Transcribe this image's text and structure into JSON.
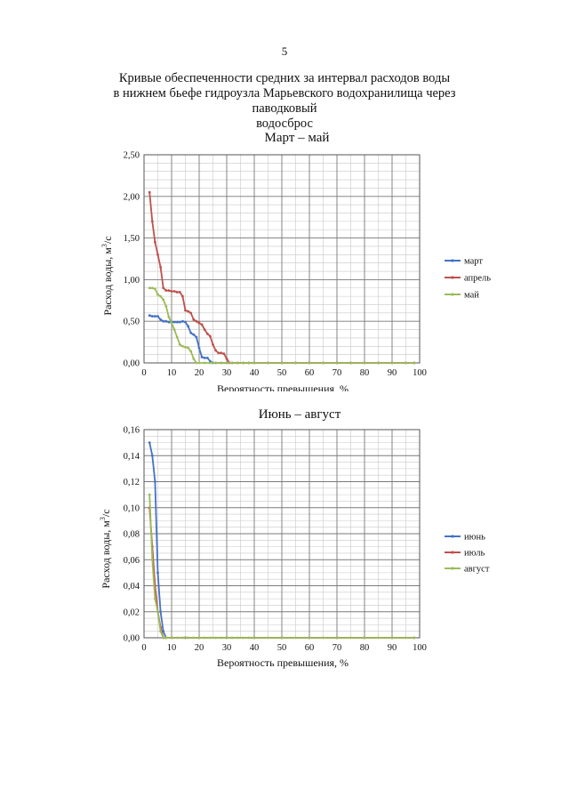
{
  "page": {
    "number": "5",
    "title_lines": [
      "Кривые обеспеченности средних за интервал расходов воды",
      "в нижнем бьефе гидроузла Марьевского водохранилища через паводковый",
      "водосброс"
    ]
  },
  "chart_data": [
    {
      "type": "line",
      "title": "Март – май",
      "xlabel": "Вероятность превышения, %",
      "ylabel_main": "Расход воды, м",
      "ylabel_sup": "3",
      "ylabel_tail": "/с",
      "xlim": [
        0,
        100
      ],
      "ylim": [
        0,
        2.5
      ],
      "xticks": [
        0,
        10,
        20,
        30,
        40,
        50,
        60,
        70,
        80,
        90,
        100
      ],
      "xtick_labels": [
        "0",
        "10",
        "20",
        "30",
        "40",
        "50",
        "60",
        "70",
        "80",
        "90",
        "100"
      ],
      "yticks": [
        0,
        0.5,
        1.0,
        1.5,
        2.0,
        2.5
      ],
      "ytick_labels": [
        "0,00",
        "0,50",
        "1,00",
        "1,50",
        "2,00",
        "2,50"
      ],
      "grid": true,
      "legend": "right",
      "series": [
        {
          "name": "март",
          "color": "#4472c4",
          "points": [
            [
              2,
              0.57
            ],
            [
              3,
              0.56
            ],
            [
              4,
              0.56
            ],
            [
              5,
              0.56
            ],
            [
              6,
              0.52
            ],
            [
              7,
              0.5
            ],
            [
              8,
              0.5
            ],
            [
              9,
              0.49
            ],
            [
              10,
              0.49
            ],
            [
              11,
              0.49
            ],
            [
              12,
              0.49
            ],
            [
              13,
              0.49
            ],
            [
              14,
              0.5
            ],
            [
              15,
              0.49
            ],
            [
              16,
              0.44
            ],
            [
              17,
              0.36
            ],
            [
              18,
              0.34
            ],
            [
              19,
              0.31
            ],
            [
              20,
              0.18
            ],
            [
              21,
              0.07
            ],
            [
              22,
              0.06
            ],
            [
              23,
              0.06
            ],
            [
              24,
              0.02
            ],
            [
              25,
              0
            ],
            [
              26,
              0
            ],
            [
              28,
              0
            ],
            [
              30,
              0
            ],
            [
              32,
              0
            ],
            [
              34,
              0
            ],
            [
              36,
              0
            ],
            [
              38,
              0
            ],
            [
              40,
              0
            ],
            [
              45,
              0
            ],
            [
              50,
              0
            ],
            [
              55,
              0
            ],
            [
              60,
              0
            ],
            [
              65,
              0
            ],
            [
              70,
              0
            ],
            [
              75,
              0
            ],
            [
              80,
              0
            ],
            [
              85,
              0
            ],
            [
              90,
              0
            ],
            [
              95,
              0
            ],
            [
              98,
              0
            ]
          ]
        },
        {
          "name": "апрель",
          "color": "#c0504d",
          "points": [
            [
              2,
              2.05
            ],
            [
              3,
              1.7
            ],
            [
              4,
              1.45
            ],
            [
              5,
              1.3
            ],
            [
              6,
              1.15
            ],
            [
              7,
              0.9
            ],
            [
              8,
              0.87
            ],
            [
              9,
              0.87
            ],
            [
              10,
              0.86
            ],
            [
              11,
              0.86
            ],
            [
              12,
              0.85
            ],
            [
              13,
              0.85
            ],
            [
              14,
              0.8
            ],
            [
              15,
              0.63
            ],
            [
              16,
              0.62
            ],
            [
              17,
              0.6
            ],
            [
              18,
              0.52
            ],
            [
              19,
              0.5
            ],
            [
              20,
              0.48
            ],
            [
              21,
              0.46
            ],
            [
              22,
              0.4
            ],
            [
              23,
              0.35
            ],
            [
              24,
              0.32
            ],
            [
              25,
              0.22
            ],
            [
              26,
              0.15
            ],
            [
              27,
              0.12
            ],
            [
              28,
              0.12
            ],
            [
              29,
              0.11
            ],
            [
              30,
              0.05
            ],
            [
              31,
              0
            ],
            [
              32,
              0
            ],
            [
              34,
              0
            ],
            [
              36,
              0
            ],
            [
              38,
              0
            ],
            [
              40,
              0
            ],
            [
              45,
              0
            ],
            [
              50,
              0
            ],
            [
              55,
              0
            ],
            [
              60,
              0
            ],
            [
              65,
              0
            ],
            [
              70,
              0
            ],
            [
              75,
              0
            ],
            [
              80,
              0
            ],
            [
              85,
              0
            ],
            [
              90,
              0
            ],
            [
              95,
              0
            ],
            [
              98,
              0
            ]
          ]
        },
        {
          "name": "май",
          "color": "#9bbb59",
          "points": [
            [
              2,
              0.9
            ],
            [
              3,
              0.9
            ],
            [
              4,
              0.89
            ],
            [
              5,
              0.82
            ],
            [
              6,
              0.8
            ],
            [
              7,
              0.76
            ],
            [
              8,
              0.68
            ],
            [
              9,
              0.55
            ],
            [
              10,
              0.48
            ],
            [
              11,
              0.4
            ],
            [
              12,
              0.31
            ],
            [
              13,
              0.22
            ],
            [
              14,
              0.2
            ],
            [
              15,
              0.19
            ],
            [
              16,
              0.18
            ],
            [
              17,
              0.14
            ],
            [
              18,
              0.05
            ],
            [
              19,
              0
            ],
            [
              20,
              0
            ],
            [
              22,
              0
            ],
            [
              24,
              0
            ],
            [
              26,
              0
            ],
            [
              28,
              0
            ],
            [
              30,
              0
            ],
            [
              32,
              0
            ],
            [
              34,
              0
            ],
            [
              36,
              0
            ],
            [
              38,
              0
            ],
            [
              40,
              0
            ],
            [
              45,
              0
            ],
            [
              50,
              0
            ],
            [
              55,
              0
            ],
            [
              60,
              0
            ],
            [
              65,
              0
            ],
            [
              70,
              0
            ],
            [
              75,
              0
            ],
            [
              80,
              0
            ],
            [
              85,
              0
            ],
            [
              90,
              0
            ],
            [
              95,
              0
            ],
            [
              98,
              0
            ]
          ]
        }
      ]
    },
    {
      "type": "line",
      "title": "Июнь – август",
      "xlabel": "Вероятность превышения, %",
      "ylabel_main": "Расход воды, м",
      "ylabel_sup": "3",
      "ylabel_tail": "/с",
      "xlim": [
        0,
        100
      ],
      "ylim": [
        0,
        0.16
      ],
      "xticks": [
        0,
        10,
        20,
        30,
        40,
        50,
        60,
        70,
        80,
        90,
        100
      ],
      "xtick_labels": [
        "0",
        "10",
        "20",
        "30",
        "40",
        "50",
        "60",
        "70",
        "80",
        "90",
        "100"
      ],
      "yticks": [
        0,
        0.02,
        0.04,
        0.06,
        0.08,
        0.1,
        0.12,
        0.14,
        0.16
      ],
      "ytick_labels": [
        "0,00",
        "0,02",
        "0,04",
        "0,06",
        "0,08",
        "0,10",
        "0,12",
        "0,14",
        "0,16"
      ],
      "grid": true,
      "legend": "right",
      "series": [
        {
          "name": "июнь",
          "color": "#4472c4",
          "points": [
            [
              2,
              0.15
            ],
            [
              3,
              0.14
            ],
            [
              4,
              0.12
            ],
            [
              5,
              0.05
            ],
            [
              6,
              0.02
            ],
            [
              7,
              0.005
            ],
            [
              8,
              0
            ],
            [
              10,
              0
            ],
            [
              15,
              0
            ],
            [
              20,
              0
            ],
            [
              30,
              0
            ],
            [
              40,
              0
            ],
            [
              50,
              0
            ],
            [
              60,
              0
            ],
            [
              70,
              0
            ],
            [
              80,
              0
            ],
            [
              90,
              0
            ],
            [
              98,
              0
            ]
          ]
        },
        {
          "name": "июль",
          "color": "#c0504d",
          "points": [
            [
              2,
              0.1
            ],
            [
              3,
              0.07
            ],
            [
              4,
              0.04
            ],
            [
              5,
              0.02
            ],
            [
              6,
              0.008
            ],
            [
              7,
              0
            ],
            [
              8,
              0
            ],
            [
              10,
              0
            ],
            [
              15,
              0
            ],
            [
              20,
              0
            ],
            [
              30,
              0
            ],
            [
              40,
              0
            ],
            [
              50,
              0
            ],
            [
              60,
              0
            ],
            [
              70,
              0
            ],
            [
              80,
              0
            ],
            [
              90,
              0
            ],
            [
              98,
              0
            ]
          ]
        },
        {
          "name": "август",
          "color": "#9bbb59",
          "points": [
            [
              2,
              0.11
            ],
            [
              3,
              0.06
            ],
            [
              4,
              0.03
            ],
            [
              5,
              0.02
            ],
            [
              6,
              0.005
            ],
            [
              7,
              0
            ],
            [
              8,
              0
            ],
            [
              10,
              0
            ],
            [
              12,
              0
            ],
            [
              14,
              0
            ],
            [
              16,
              0
            ],
            [
              18,
              0
            ],
            [
              20,
              0
            ],
            [
              22,
              0
            ],
            [
              24,
              0
            ],
            [
              26,
              0
            ],
            [
              28,
              0
            ],
            [
              30,
              0
            ],
            [
              32,
              0
            ],
            [
              34,
              0
            ],
            [
              36,
              0
            ],
            [
              38,
              0
            ],
            [
              40,
              0
            ],
            [
              45,
              0
            ],
            [
              50,
              0
            ],
            [
              55,
              0
            ],
            [
              60,
              0
            ],
            [
              65,
              0
            ],
            [
              70,
              0
            ],
            [
              75,
              0
            ],
            [
              80,
              0
            ],
            [
              85,
              0
            ],
            [
              90,
              0
            ],
            [
              95,
              0
            ],
            [
              98,
              0
            ]
          ]
        }
      ]
    }
  ]
}
